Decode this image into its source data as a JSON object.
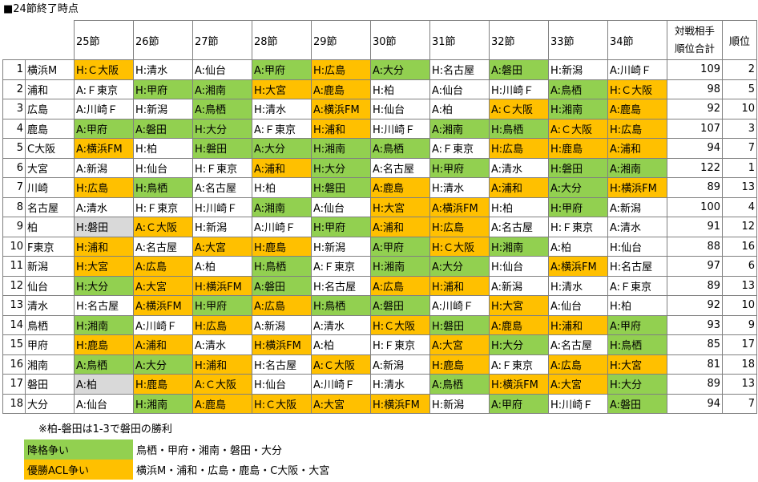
{
  "title": "■24節終了時点",
  "headers": {
    "rounds": [
      "25節",
      "26節",
      "27節",
      "28節",
      "29節",
      "30節",
      "31節",
      "32節",
      "33節",
      "34節"
    ],
    "opponent_rank_total": [
      "対戦相手",
      "順位合計"
    ],
    "rank": "順位"
  },
  "rows": [
    {
      "no": "1",
      "team": "横浜M",
      "matches": [
        {
          "t": "H:Ｃ大阪",
          "c": "o"
        },
        {
          "t": "H:清水",
          "c": ""
        },
        {
          "t": "A:仙台",
          "c": ""
        },
        {
          "t": "A:甲府",
          "c": "g"
        },
        {
          "t": "H:広島",
          "c": "o"
        },
        {
          "t": "A:大分",
          "c": "g"
        },
        {
          "t": "H:名古屋",
          "c": ""
        },
        {
          "t": "A:磐田",
          "c": "g"
        },
        {
          "t": "H:新潟",
          "c": ""
        },
        {
          "t": "A:川崎Ｆ",
          "c": ""
        }
      ],
      "total": "109",
      "rank": "2"
    },
    {
      "no": "2",
      "team": "浦和",
      "matches": [
        {
          "t": "A:Ｆ東京",
          "c": ""
        },
        {
          "t": "H:甲府",
          "c": "g"
        },
        {
          "t": "A:湘南",
          "c": "g"
        },
        {
          "t": "H:大宮",
          "c": "o"
        },
        {
          "t": "A:鹿島",
          "c": "o"
        },
        {
          "t": "H:柏",
          "c": ""
        },
        {
          "t": "A:仙台",
          "c": ""
        },
        {
          "t": "H:川崎Ｆ",
          "c": ""
        },
        {
          "t": "A:鳥栖",
          "c": "g"
        },
        {
          "t": "H:Ｃ大阪",
          "c": "o"
        }
      ],
      "total": "98",
      "rank": "5"
    },
    {
      "no": "3",
      "team": "広島",
      "matches": [
        {
          "t": "A:川崎Ｆ",
          "c": ""
        },
        {
          "t": "H:新潟",
          "c": ""
        },
        {
          "t": "A:鳥栖",
          "c": "g"
        },
        {
          "t": "H:清水",
          "c": ""
        },
        {
          "t": "A:横浜FM",
          "c": "o"
        },
        {
          "t": "H:仙台",
          "c": ""
        },
        {
          "t": "A:柏",
          "c": ""
        },
        {
          "t": "A:Ｃ大阪",
          "c": "o"
        },
        {
          "t": "H:湘南",
          "c": "g"
        },
        {
          "t": "A:鹿島",
          "c": "o"
        }
      ],
      "total": "92",
      "rank": "10"
    },
    {
      "no": "4",
      "team": "鹿島",
      "matches": [
        {
          "t": "A:甲府",
          "c": "g"
        },
        {
          "t": "A:磐田",
          "c": "g"
        },
        {
          "t": "H:大分",
          "c": "g"
        },
        {
          "t": "A:Ｆ東京",
          "c": ""
        },
        {
          "t": "H:浦和",
          "c": "o"
        },
        {
          "t": "H:川崎Ｆ",
          "c": ""
        },
        {
          "t": "A:湘南",
          "c": "g"
        },
        {
          "t": "H:鳥栖",
          "c": "g"
        },
        {
          "t": "A:Ｃ大阪",
          "c": "o"
        },
        {
          "t": "H:広島",
          "c": "o"
        }
      ],
      "total": "107",
      "rank": "3"
    },
    {
      "no": "5",
      "team": "C大阪",
      "matches": [
        {
          "t": "A:横浜FM",
          "c": "o"
        },
        {
          "t": "H:柏",
          "c": ""
        },
        {
          "t": "H:磐田",
          "c": "g"
        },
        {
          "t": "A:大分",
          "c": "g"
        },
        {
          "t": "H:湘南",
          "c": "g"
        },
        {
          "t": "A:鳥栖",
          "c": "g"
        },
        {
          "t": "A:Ｆ東京",
          "c": ""
        },
        {
          "t": "H:広島",
          "c": "o"
        },
        {
          "t": "H:鹿島",
          "c": "o"
        },
        {
          "t": "A:浦和",
          "c": "o"
        }
      ],
      "total": "94",
      "rank": "7"
    },
    {
      "no": "6",
      "team": "大宮",
      "matches": [
        {
          "t": "A:新潟",
          "c": ""
        },
        {
          "t": "H:仙台",
          "c": ""
        },
        {
          "t": "H:Ｆ東京",
          "c": ""
        },
        {
          "t": "A:浦和",
          "c": "o"
        },
        {
          "t": "H:大分",
          "c": "g"
        },
        {
          "t": "A:名古屋",
          "c": ""
        },
        {
          "t": "H:甲府",
          "c": "g"
        },
        {
          "t": "A:清水",
          "c": ""
        },
        {
          "t": "H:磐田",
          "c": "g"
        },
        {
          "t": "A:湘南",
          "c": "g"
        }
      ],
      "total": "122",
      "rank": "1"
    },
    {
      "no": "7",
      "team": "川崎",
      "matches": [
        {
          "t": "H:広島",
          "c": "o"
        },
        {
          "t": "H:鳥栖",
          "c": "g"
        },
        {
          "t": "A:名古屋",
          "c": ""
        },
        {
          "t": "H:柏",
          "c": ""
        },
        {
          "t": "H:磐田",
          "c": "g"
        },
        {
          "t": "A:鹿島",
          "c": "o"
        },
        {
          "t": "H:清水",
          "c": ""
        },
        {
          "t": "A:浦和",
          "c": "o"
        },
        {
          "t": "A:大分",
          "c": "g"
        },
        {
          "t": "H:横浜FM",
          "c": "o"
        }
      ],
      "total": "89",
      "rank": "13"
    },
    {
      "no": "8",
      "team": "名古屋",
      "matches": [
        {
          "t": "A:清水",
          "c": ""
        },
        {
          "t": "H:Ｆ東京",
          "c": ""
        },
        {
          "t": "H:川崎Ｆ",
          "c": ""
        },
        {
          "t": "A:湘南",
          "c": "g"
        },
        {
          "t": "A:仙台",
          "c": ""
        },
        {
          "t": "H:大宮",
          "c": "o"
        },
        {
          "t": "A:横浜FM",
          "c": "o"
        },
        {
          "t": "H:柏",
          "c": ""
        },
        {
          "t": "H:甲府",
          "c": "g"
        },
        {
          "t": "A:新潟",
          "c": ""
        }
      ],
      "total": "100",
      "rank": "4"
    },
    {
      "no": "9",
      "team": "柏",
      "matches": [
        {
          "t": "H:磐田",
          "c": "x"
        },
        {
          "t": "A:Ｃ大阪",
          "c": "o"
        },
        {
          "t": "H:新潟",
          "c": ""
        },
        {
          "t": "A:川崎Ｆ",
          "c": ""
        },
        {
          "t": "H:甲府",
          "c": "g"
        },
        {
          "t": "A:浦和",
          "c": "o"
        },
        {
          "t": "H:広島",
          "c": "o"
        },
        {
          "t": "A:名古屋",
          "c": ""
        },
        {
          "t": "H:Ｆ東京",
          "c": ""
        },
        {
          "t": "A:清水",
          "c": ""
        }
      ],
      "total": "91",
      "rank": "12"
    },
    {
      "no": "10",
      "team": "F東京",
      "matches": [
        {
          "t": "H:浦和",
          "c": "o"
        },
        {
          "t": "A:名古屋",
          "c": ""
        },
        {
          "t": "A:大宮",
          "c": "o"
        },
        {
          "t": "H:鹿島",
          "c": "o"
        },
        {
          "t": "H:新潟",
          "c": ""
        },
        {
          "t": "A:甲府",
          "c": "g"
        },
        {
          "t": "H:Ｃ大阪",
          "c": "o"
        },
        {
          "t": "H:湘南",
          "c": "g"
        },
        {
          "t": "A:柏",
          "c": ""
        },
        {
          "t": "H:仙台",
          "c": ""
        }
      ],
      "total": "88",
      "rank": "16"
    },
    {
      "no": "11",
      "team": "新潟",
      "matches": [
        {
          "t": "H:大宮",
          "c": "o"
        },
        {
          "t": "A:広島",
          "c": "o"
        },
        {
          "t": "A:柏",
          "c": ""
        },
        {
          "t": "H:鳥栖",
          "c": "g"
        },
        {
          "t": "A:Ｆ東京",
          "c": ""
        },
        {
          "t": "H:湘南",
          "c": "g"
        },
        {
          "t": "A:大分",
          "c": "g"
        },
        {
          "t": "H:仙台",
          "c": ""
        },
        {
          "t": "A:横浜FM",
          "c": "o"
        },
        {
          "t": "H:名古屋",
          "c": ""
        }
      ],
      "total": "97",
      "rank": "6"
    },
    {
      "no": "12",
      "team": "仙台",
      "matches": [
        {
          "t": "H:大分",
          "c": "g"
        },
        {
          "t": "A:大宮",
          "c": "o"
        },
        {
          "t": "H:横浜FM",
          "c": "o"
        },
        {
          "t": "A:磐田",
          "c": "g"
        },
        {
          "t": "H:名古屋",
          "c": ""
        },
        {
          "t": "A:広島",
          "c": "o"
        },
        {
          "t": "H:浦和",
          "c": "o"
        },
        {
          "t": "A:新潟",
          "c": ""
        },
        {
          "t": "H:清水",
          "c": ""
        },
        {
          "t": "A:Ｆ東京",
          "c": ""
        }
      ],
      "total": "89",
      "rank": "13"
    },
    {
      "no": "13",
      "team": "清水",
      "matches": [
        {
          "t": "H:名古屋",
          "c": ""
        },
        {
          "t": "A:横浜FM",
          "c": "o"
        },
        {
          "t": "H:甲府",
          "c": "g"
        },
        {
          "t": "A:広島",
          "c": "o"
        },
        {
          "t": "H:鳥栖",
          "c": "g"
        },
        {
          "t": "A:磐田",
          "c": "g"
        },
        {
          "t": "A:川崎Ｆ",
          "c": ""
        },
        {
          "t": "H:大宮",
          "c": "o"
        },
        {
          "t": "A:仙台",
          "c": ""
        },
        {
          "t": "H:柏",
          "c": ""
        }
      ],
      "total": "92",
      "rank": "10"
    },
    {
      "no": "14",
      "team": "鳥栖",
      "matches": [
        {
          "t": "H:湘南",
          "c": "g"
        },
        {
          "t": "A:川崎Ｆ",
          "c": ""
        },
        {
          "t": "H:広島",
          "c": "o"
        },
        {
          "t": "A:新潟",
          "c": ""
        },
        {
          "t": "A:清水",
          "c": ""
        },
        {
          "t": "H:Ｃ大阪",
          "c": "o"
        },
        {
          "t": "H:磐田",
          "c": "g"
        },
        {
          "t": "A:鹿島",
          "c": "o"
        },
        {
          "t": "H:浦和",
          "c": "o"
        },
        {
          "t": "A:甲府",
          "c": "g"
        }
      ],
      "total": "93",
      "rank": "9"
    },
    {
      "no": "15",
      "team": "甲府",
      "matches": [
        {
          "t": "H:鹿島",
          "c": "o"
        },
        {
          "t": "A:浦和",
          "c": "o"
        },
        {
          "t": "A:清水",
          "c": ""
        },
        {
          "t": "H:横浜FM",
          "c": "o"
        },
        {
          "t": "A:柏",
          "c": ""
        },
        {
          "t": "H:Ｆ東京",
          "c": ""
        },
        {
          "t": "A:大宮",
          "c": "o"
        },
        {
          "t": "H:大分",
          "c": "g"
        },
        {
          "t": "A:名古屋",
          "c": ""
        },
        {
          "t": "H:鳥栖",
          "c": "g"
        }
      ],
      "total": "85",
      "rank": "17"
    },
    {
      "no": "16",
      "team": "湘南",
      "matches": [
        {
          "t": "A:鳥栖",
          "c": "g"
        },
        {
          "t": "A:大分",
          "c": "g"
        },
        {
          "t": "H:浦和",
          "c": "o"
        },
        {
          "t": "H:名古屋",
          "c": ""
        },
        {
          "t": "A:Ｃ大阪",
          "c": "o"
        },
        {
          "t": "A:新潟",
          "c": ""
        },
        {
          "t": "H:鹿島",
          "c": "o"
        },
        {
          "t": "A:Ｆ東京",
          "c": ""
        },
        {
          "t": "A:広島",
          "c": "o"
        },
        {
          "t": "H:大宮",
          "c": "o"
        }
      ],
      "total": "81",
      "rank": "18"
    },
    {
      "no": "17",
      "team": "磐田",
      "matches": [
        {
          "t": "A:柏",
          "c": "x"
        },
        {
          "t": "H:鹿島",
          "c": "o"
        },
        {
          "t": "A:Ｃ大阪",
          "c": "o"
        },
        {
          "t": "H:仙台",
          "c": ""
        },
        {
          "t": "A:川崎Ｆ",
          "c": ""
        },
        {
          "t": "H:清水",
          "c": ""
        },
        {
          "t": "A:鳥栖",
          "c": "g"
        },
        {
          "t": "H:横浜FM",
          "c": "o"
        },
        {
          "t": "A:大宮",
          "c": "o"
        },
        {
          "t": "H:大分",
          "c": "g"
        }
      ],
      "total": "89",
      "rank": "13"
    },
    {
      "no": "18",
      "team": "大分",
      "matches": [
        {
          "t": "A:仙台",
          "c": ""
        },
        {
          "t": "H:湘南",
          "c": "g"
        },
        {
          "t": "A:鹿島",
          "c": "o"
        },
        {
          "t": "H:Ｃ大阪",
          "c": "o"
        },
        {
          "t": "A:大宮",
          "c": "o"
        },
        {
          "t": "H:横浜FM",
          "c": "o"
        },
        {
          "t": "H:新潟",
          "c": ""
        },
        {
          "t": "A:甲府",
          "c": "g"
        },
        {
          "t": "H:川崎Ｆ",
          "c": ""
        },
        {
          "t": "A:磐田",
          "c": "g"
        }
      ],
      "total": "94",
      "rank": "7"
    }
  ],
  "note": "※柏-磐田は1-3で磐田の勝利",
  "legend": [
    {
      "label": "降格争い",
      "teams": "鳥栖・甲府・湘南・磐田・大分",
      "color": "#92d050"
    },
    {
      "label": "優勝ACL争い",
      "teams": "横浜M・浦和・広島・鹿島・C大阪・大宮",
      "color": "#ffc000"
    }
  ],
  "colors": {
    "relegation": "#92d050",
    "title_acl": "#ffc000",
    "decided": "#d9d9d9"
  }
}
